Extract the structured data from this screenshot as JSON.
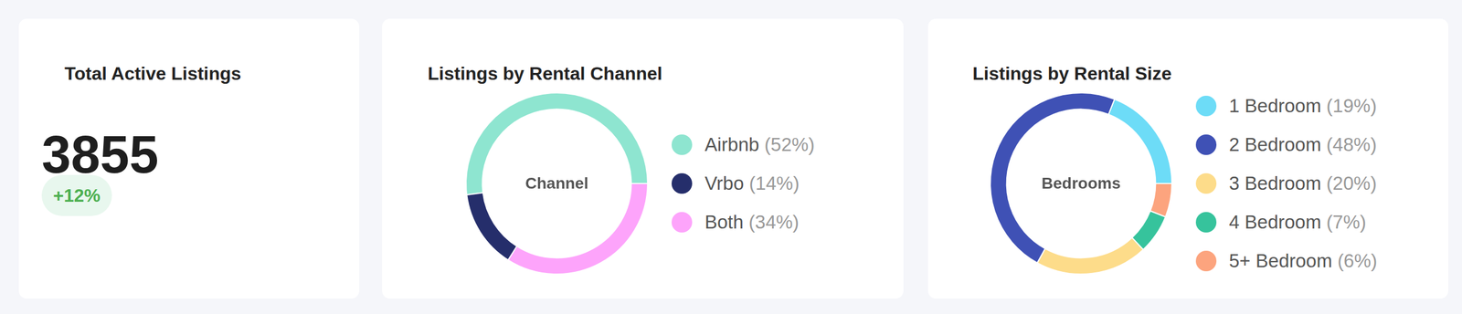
{
  "kpi": {
    "title": "Total Active Listings",
    "value": 3855,
    "change": "+12%"
  },
  "chart_data": [
    {
      "type": "doughnut",
      "title": "Listings by Rental Channel",
      "center_label": "Channel",
      "categories": [
        "Airbnb",
        "Vrbo",
        "Both"
      ],
      "values": [
        52,
        14,
        34
      ],
      "value_labels": [
        "(52%)",
        "(14%)",
        "(34%)"
      ],
      "colors": [
        "#8ee5d0",
        "#252e6b",
        "#fda4fb"
      ],
      "legend": "right"
    },
    {
      "type": "doughnut",
      "title": "Listings by Rental Size",
      "center_label": "Bedrooms",
      "categories": [
        "1 Bedroom",
        "2 Bedroom",
        "3 Bedroom",
        "4 Bedroom",
        "5+ Bedroom"
      ],
      "values": [
        19,
        48,
        20,
        7,
        6
      ],
      "value_labels": [
        "(19%)",
        "(48%)",
        "(20%)",
        "(7%)",
        "(6%)"
      ],
      "colors": [
        "#6ddcf7",
        "#3f51b5",
        "#fddc8a",
        "#36c39c",
        "#fca47e"
      ],
      "legend": "right"
    }
  ]
}
